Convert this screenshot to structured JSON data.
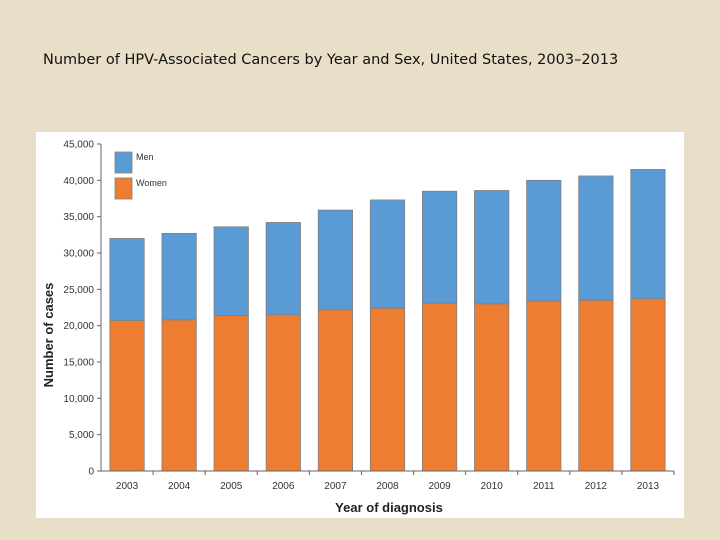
{
  "page": {
    "title": "Number of HPV-Associated Cancers by Year and Sex, United States, 2003–2013"
  },
  "chart_data": {
    "type": "bar",
    "stacked": true,
    "title": "",
    "xlabel": "Year of diagnosis",
    "ylabel": "Number of cases",
    "categories": [
      "2003",
      "2004",
      "2005",
      "2006",
      "2007",
      "2008",
      "2009",
      "2010",
      "2011",
      "2012",
      "2013"
    ],
    "ylim": [
      0,
      45000
    ],
    "yticks": [
      0,
      5000,
      10000,
      15000,
      20000,
      25000,
      30000,
      35000,
      40000,
      45000
    ],
    "ytick_labels": [
      "0",
      "5,000",
      "10,000",
      "15,000",
      "20,000",
      "25,000",
      "30,000",
      "35,000",
      "40,000",
      "45,000"
    ],
    "series": [
      {
        "name": "Women",
        "color": "#ed7d31",
        "values": [
          20700,
          20800,
          21400,
          21500,
          22200,
          22400,
          23100,
          23000,
          23400,
          23500,
          23700
        ]
      },
      {
        "name": "Men",
        "color": "#5b9bd5",
        "values": [
          11300,
          11900,
          12200,
          12700,
          13700,
          14900,
          15400,
          15600,
          16600,
          17100,
          17800
        ]
      }
    ],
    "legend": {
      "placement": "top-left",
      "order": [
        "Men",
        "Women"
      ]
    },
    "grid": false,
    "bar_edge_color": "#808080"
  }
}
